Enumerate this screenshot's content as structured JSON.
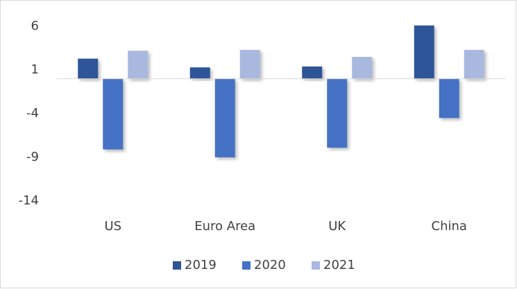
{
  "chart_data": {
    "type": "bar",
    "categories": [
      "US",
      "Euro Area",
      "UK",
      "China"
    ],
    "series": [
      {
        "name": "2019",
        "color": "#2f5597",
        "values": [
          2.3,
          1.3,
          1.4,
          6.1
        ]
      },
      {
        "name": "2020",
        "color": "#4472c4",
        "values": [
          -8.1,
          -9.0,
          -7.9,
          -4.5
        ]
      },
      {
        "name": "2021",
        "color": "#a9b8de",
        "values": [
          3.2,
          3.3,
          2.5,
          3.3
        ]
      }
    ],
    "ylim": [
      -14,
      6
    ],
    "yticks": [
      6,
      1,
      -4,
      -9,
      -14
    ],
    "grid": false,
    "legend": "bottom"
  }
}
